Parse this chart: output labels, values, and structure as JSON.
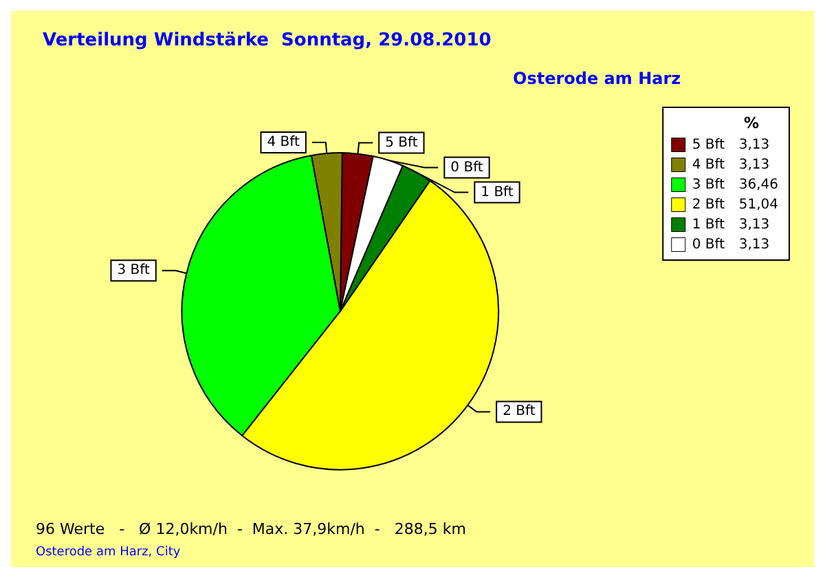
{
  "chart_data": {
    "type": "pie",
    "title": "Verteilung Windstärke  Sonntag, 29.08.2010",
    "subtitle": "Osterode am Harz",
    "legend_title": "%",
    "categories": [
      "5 Bft",
      "4 Bft",
      "3 Bft",
      "2 Bft",
      "1 Bft",
      "0 Bft"
    ],
    "values": [
      3.13,
      3.13,
      36.46,
      51.04,
      3.13,
      3.13
    ],
    "value_labels": [
      "3,13",
      "3,13",
      "36,46",
      "51,04",
      "3,13",
      "3,13"
    ],
    "colors": [
      "#800000",
      "#808000",
      "#00ff00",
      "#ffff00",
      "#008000",
      "#ffffff"
    ],
    "legend": "top right",
    "annotations": [
      "96 Werte   -   Ø 12,0km/h  -  Max. 37,9km/h  -   288,5 km",
      "Osterode am Harz, City"
    ]
  }
}
